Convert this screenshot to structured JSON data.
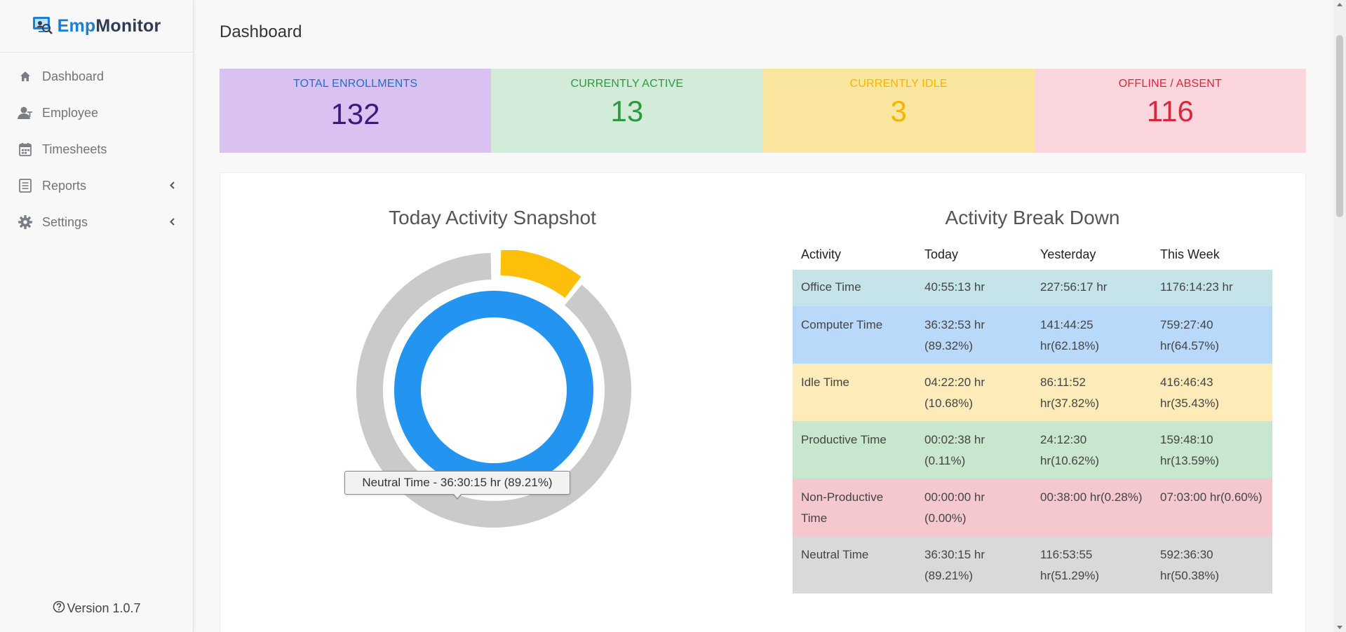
{
  "brand": {
    "part1": "Emp",
    "part2": "Monitor",
    "icon": "monitor-logo-icon"
  },
  "sidebar": {
    "items": [
      {
        "label": "Dashboard",
        "icon": "home-icon"
      },
      {
        "label": "Employee",
        "icon": "user-icon"
      },
      {
        "label": "Timesheets",
        "icon": "calendar-icon"
      },
      {
        "label": "Reports",
        "icon": "report-icon",
        "expandable": true
      },
      {
        "label": "Settings",
        "icon": "gear-icon",
        "expandable": true
      }
    ],
    "version": "Version 1.0.7"
  },
  "page": {
    "title": "Dashboard"
  },
  "stats": [
    {
      "label": "TOTAL ENROLLMENTS",
      "value": "132",
      "color": "#d9c2f2"
    },
    {
      "label": "CURRENTLY ACTIVE",
      "value": "13",
      "color": "#d3ebd9"
    },
    {
      "label": "CURRENTLY IDLE",
      "value": "3",
      "color": "#fbe6a0"
    },
    {
      "label": "OFFLINE / ABSENT",
      "value": "116",
      "color": "#fbd6dc"
    }
  ],
  "snapshot": {
    "title": "Today Activity Snapshot",
    "tooltip": "Neutral Time - 36:30:15 hr (89.21%)"
  },
  "breakdown": {
    "title": "Activity Break Down",
    "headers": [
      "Activity",
      "Today",
      "Yesterday",
      "This Week"
    ],
    "rows": [
      {
        "activity": "Office Time",
        "today": "40:55:13 hr",
        "yesterday": "227:56:17 hr",
        "week": "1176:14:23 hr"
      },
      {
        "activity": "Computer Time",
        "today": "36:32:53 hr (89.32%)",
        "yesterday": "141:44:25 hr(62.18%)",
        "week": "759:27:40 hr(64.57%)"
      },
      {
        "activity": "Idle Time",
        "today": "04:22:20 hr (10.68%)",
        "yesterday": "86:11:52 hr(37.82%)",
        "week": "416:46:43 hr(35.43%)"
      },
      {
        "activity": "Productive Time",
        "today": "00:02:38 hr (0.11%)",
        "yesterday": "24:12:30 hr(10.62%)",
        "week": "159:48:10 hr(13.59%)"
      },
      {
        "activity": "Non-Productive Time",
        "today": "00:00:00 hr (0.00%)",
        "yesterday": "00:38:00 hr(0.28%)",
        "week": "07:03:00 hr(0.60%)"
      },
      {
        "activity": "Neutral Time",
        "today": "36:30:15 hr (89.21%)",
        "yesterday": "116:53:55 hr(51.29%)",
        "week": "592:36:30 hr(50.38%)"
      }
    ]
  },
  "chart_data": {
    "type": "pie",
    "title": "Today Activity Snapshot",
    "rings": [
      {
        "ring": "outer",
        "slices": [
          {
            "name": "Idle Time",
            "value": 10.68,
            "color": "#fcc00a"
          },
          {
            "name": "Neutral Time",
            "value": 89.21,
            "color": "#cacaca"
          }
        ]
      },
      {
        "ring": "inner",
        "slices": [
          {
            "name": "Computer Time",
            "value": 100,
            "color": "#2395f1"
          }
        ]
      }
    ]
  }
}
